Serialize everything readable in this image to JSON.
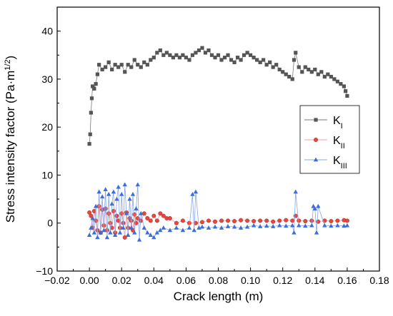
{
  "chart_data": {
    "type": "scatter",
    "title": "",
    "xlabel": "Crack length (m)",
    "ylabel_main": "Stress intensity factor (Pa·m",
    "ylabel_sup": "1/2",
    "ylabel_close": ")",
    "xlim": [
      -0.02,
      0.18
    ],
    "ylim": [
      -10,
      45
    ],
    "x_ticks": [
      -0.02,
      0.0,
      0.02,
      0.04,
      0.06,
      0.08,
      0.1,
      0.12,
      0.14,
      0.16,
      0.18
    ],
    "x_tick_labels": [
      "−0.02",
      "0.00",
      "0.02",
      "0.04",
      "0.06",
      "0.08",
      "0.10",
      "0.12",
      "0.14",
      "0.16",
      "0.18"
    ],
    "y_ticks": [
      -10,
      0,
      10,
      20,
      30,
      40
    ],
    "y_tick_labels": [
      "−10",
      "0",
      "10",
      "20",
      "30",
      "40"
    ],
    "grid": false,
    "legend_position": "right",
    "series": [
      {
        "name_main": "K",
        "name_sub": "I",
        "marker": "square",
        "color": "#555555",
        "x": [
          0.0,
          0.0005,
          0.001,
          0.0015,
          0.002,
          0.003,
          0.004,
          0.005,
          0.006,
          0.008,
          0.01,
          0.012,
          0.014,
          0.016,
          0.018,
          0.02,
          0.022,
          0.024,
          0.026,
          0.028,
          0.03,
          0.032,
          0.034,
          0.036,
          0.038,
          0.04,
          0.042,
          0.044,
          0.046,
          0.048,
          0.05,
          0.052,
          0.054,
          0.056,
          0.058,
          0.06,
          0.062,
          0.064,
          0.066,
          0.068,
          0.07,
          0.072,
          0.074,
          0.076,
          0.078,
          0.08,
          0.082,
          0.084,
          0.086,
          0.088,
          0.09,
          0.092,
          0.094,
          0.096,
          0.098,
          0.1,
          0.102,
          0.104,
          0.106,
          0.108,
          0.11,
          0.112,
          0.114,
          0.116,
          0.118,
          0.12,
          0.122,
          0.124,
          0.126,
          0.127,
          0.128,
          0.13,
          0.132,
          0.134,
          0.136,
          0.138,
          0.14,
          0.142,
          0.144,
          0.146,
          0.148,
          0.15,
          0.152,
          0.154,
          0.156,
          0.158,
          0.159,
          0.16
        ],
        "y": [
          16.5,
          18.5,
          23.0,
          26.0,
          28.5,
          28.0,
          29.0,
          31.0,
          33.0,
          32.0,
          32.5,
          33.5,
          32.0,
          33.0,
          32.5,
          33.0,
          31.5,
          33.0,
          32.5,
          34.0,
          33.0,
          32.5,
          33.5,
          33.0,
          34.0,
          34.5,
          35.5,
          36.0,
          35.0,
          35.5,
          35.0,
          34.5,
          35.0,
          34.5,
          35.0,
          34.5,
          34.0,
          35.0,
          35.5,
          36.0,
          36.5,
          35.5,
          36.0,
          35.0,
          34.5,
          35.0,
          34.0,
          34.5,
          35.0,
          34.0,
          33.5,
          34.5,
          34.0,
          35.0,
          35.5,
          35.0,
          34.5,
          34.0,
          33.5,
          34.0,
          33.0,
          33.5,
          32.5,
          33.0,
          32.0,
          31.5,
          31.0,
          30.5,
          30.0,
          34.0,
          35.5,
          32.5,
          31.5,
          32.5,
          32.0,
          31.5,
          32.0,
          31.0,
          31.5,
          30.5,
          31.0,
          30.5,
          30.0,
          29.5,
          29.0,
          28.5,
          27.5,
          26.5
        ]
      },
      {
        "name_main": "K",
        "name_sub": "II",
        "marker": "circle",
        "color": "#e8453c",
        "x": [
          0.0,
          0.001,
          0.002,
          0.003,
          0.004,
          0.005,
          0.006,
          0.007,
          0.008,
          0.009,
          0.01,
          0.011,
          0.012,
          0.013,
          0.014,
          0.015,
          0.016,
          0.017,
          0.018,
          0.019,
          0.02,
          0.021,
          0.022,
          0.023,
          0.024,
          0.025,
          0.026,
          0.027,
          0.028,
          0.029,
          0.03,
          0.032,
          0.034,
          0.036,
          0.038,
          0.04,
          0.042,
          0.044,
          0.046,
          0.048,
          0.05,
          0.054,
          0.058,
          0.062,
          0.066,
          0.07,
          0.074,
          0.078,
          0.082,
          0.086,
          0.09,
          0.094,
          0.098,
          0.102,
          0.106,
          0.11,
          0.114,
          0.118,
          0.122,
          0.126,
          0.128,
          0.13,
          0.134,
          0.138,
          0.142,
          0.146,
          0.15,
          0.154,
          0.158,
          0.16
        ],
        "y": [
          2.2,
          1.5,
          -1.0,
          2.5,
          0.5,
          -1.5,
          3.5,
          -2.0,
          2.8,
          -0.5,
          3.0,
          -1.5,
          2.0,
          0.0,
          -1.0,
          2.5,
          -2.0,
          1.5,
          0.5,
          -1.0,
          2.0,
          0.0,
          -3.0,
          2.2,
          -1.0,
          1.0,
          0.5,
          -1.5,
          1.8,
          0.0,
          1.0,
          0.5,
          2.0,
          1.0,
          0.5,
          1.5,
          0.5,
          2.0,
          1.5,
          1.0,
          1.0,
          0.0,
          0.5,
          0.0,
          0.0,
          0.2,
          0.5,
          0.3,
          0.5,
          0.5,
          0.4,
          0.6,
          0.5,
          0.4,
          0.5,
          0.5,
          0.3,
          0.5,
          0.6,
          0.5,
          1.5,
          0.5,
          0.4,
          0.5,
          0.3,
          0.5,
          0.4,
          0.5,
          0.6,
          0.5
        ]
      },
      {
        "name_main": "K",
        "name_sub": "III",
        "marker": "triangle",
        "color": "#3a6fd8",
        "x": [
          0.0,
          0.001,
          0.002,
          0.003,
          0.004,
          0.005,
          0.006,
          0.007,
          0.008,
          0.009,
          0.01,
          0.011,
          0.012,
          0.013,
          0.014,
          0.015,
          0.016,
          0.017,
          0.018,
          0.019,
          0.02,
          0.021,
          0.022,
          0.023,
          0.024,
          0.025,
          0.026,
          0.027,
          0.028,
          0.029,
          0.03,
          0.031,
          0.032,
          0.034,
          0.036,
          0.038,
          0.04,
          0.042,
          0.044,
          0.046,
          0.05,
          0.054,
          0.058,
          0.062,
          0.064,
          0.065,
          0.066,
          0.068,
          0.07,
          0.074,
          0.078,
          0.082,
          0.086,
          0.09,
          0.094,
          0.098,
          0.102,
          0.106,
          0.11,
          0.114,
          0.118,
          0.122,
          0.126,
          0.127,
          0.128,
          0.13,
          0.134,
          0.138,
          0.139,
          0.14,
          0.141,
          0.142,
          0.146,
          0.15,
          0.154,
          0.158,
          0.16
        ],
        "y": [
          -2.5,
          -1.0,
          1.0,
          -2.0,
          3.5,
          -3.0,
          6.5,
          -2.0,
          5.5,
          -1.5,
          7.0,
          -3.0,
          6.0,
          -2.0,
          4.0,
          6.5,
          -2.5,
          5.0,
          7.5,
          -2.0,
          6.0,
          -1.0,
          8.0,
          2.0,
          -2.5,
          5.0,
          -1.0,
          6.0,
          -2.0,
          3.0,
          8.0,
          -3.5,
          2.0,
          -1.0,
          -2.0,
          -2.5,
          -3.0,
          -2.0,
          -1.5,
          -1.0,
          -1.5,
          -1.0,
          -1.5,
          -1.0,
          6.0,
          -1.5,
          6.5,
          -1.0,
          -0.8,
          -1.0,
          -0.8,
          -1.0,
          -0.7,
          -0.8,
          -1.0,
          -0.8,
          -0.5,
          -0.7,
          -0.6,
          -0.7,
          -0.5,
          -0.6,
          -0.5,
          -2.0,
          6.5,
          -0.5,
          -0.6,
          -0.5,
          3.5,
          3.0,
          -2.0,
          3.5,
          -0.5,
          -0.6,
          -0.5,
          -0.6,
          -0.5
        ]
      }
    ]
  }
}
